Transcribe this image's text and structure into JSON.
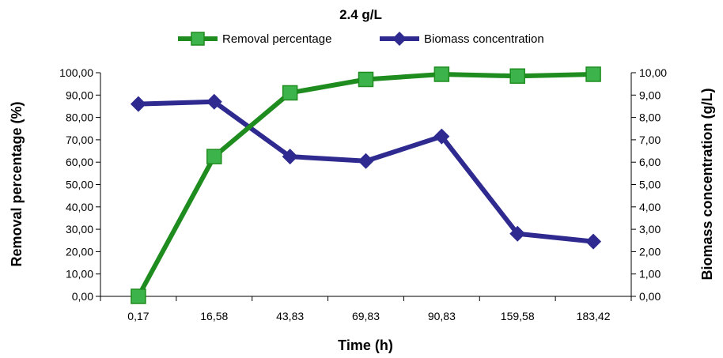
{
  "chart_data": {
    "type": "line",
    "title": "2.4 g/L",
    "xlabel": "Time (h)",
    "ylabel_left": "Removal percentage (%)",
    "ylabel_right": "Biomass concentration (g/L)",
    "categories": [
      "0,17",
      "16,58",
      "43,83",
      "69,83",
      "90,83",
      "159,58",
      "183,42"
    ],
    "ylim_left": [
      0,
      100
    ],
    "ylim_right": [
      0,
      10
    ],
    "yticks_left": [
      "0,00",
      "10,00",
      "20,00",
      "30,00",
      "40,00",
      "50,00",
      "60,00",
      "70,00",
      "80,00",
      "90,00",
      "100,00"
    ],
    "yticks_right": [
      "0,00",
      "1,00",
      "2,00",
      "3,00",
      "4,00",
      "5,00",
      "6,00",
      "7,00",
      "8,00",
      "9,00",
      "10,00"
    ],
    "grid": false,
    "legend_position": "top",
    "series": [
      {
        "name": "Removal percentage",
        "axis": "left",
        "color": "#1e8c1e",
        "marker_color": "#3cb44b",
        "marker": "square",
        "values": [
          0,
          62.5,
          91,
          97,
          99.3,
          98.5,
          99.3
        ]
      },
      {
        "name": "Biomass concentration",
        "axis": "right",
        "color": "#2e2a8f",
        "marker": "diamond",
        "values": [
          8.6,
          8.7,
          6.25,
          6.05,
          7.15,
          2.8,
          2.45
        ]
      }
    ]
  }
}
